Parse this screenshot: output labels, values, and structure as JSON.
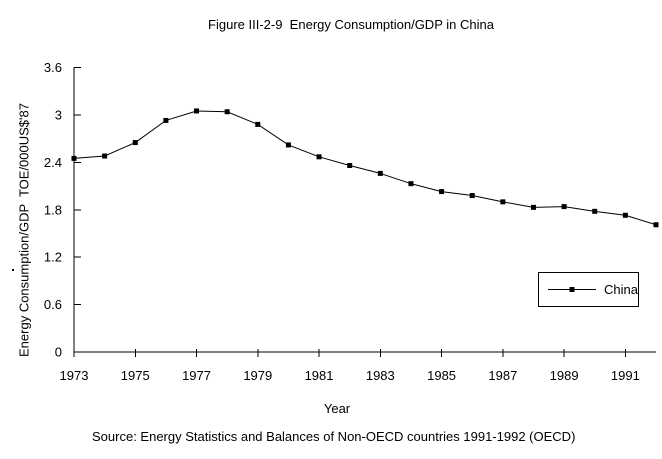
{
  "title": "Figure III-2-9  Energy Consumption/GDP in China",
  "source": "Source: Energy Statistics and Balances of Non-OECD countries 1991-1992 (OECD)",
  "axes": {
    "x_label": "Year",
    "y_label": "Energy Consumption/GDP  TOE/000US$'87"
  },
  "colors": {
    "foreground": "#000000",
    "background": "#ffffff"
  },
  "chart_data": {
    "type": "line",
    "title": "Figure III-2-9  Energy Consumption/GDP in China",
    "xlabel": "Year",
    "ylabel": "Energy Consumption/GDP  TOE/000US$'87",
    "x": [
      1973,
      1974,
      1975,
      1976,
      1977,
      1978,
      1979,
      1980,
      1981,
      1982,
      1983,
      1984,
      1985,
      1986,
      1987,
      1988,
      1989,
      1990,
      1991,
      1992
    ],
    "series": [
      {
        "name": "China",
        "color": "#000000",
        "marker": "square",
        "values": [
          2.45,
          2.48,
          2.65,
          2.93,
          3.05,
          3.04,
          2.88,
          2.62,
          2.47,
          2.36,
          2.26,
          2.13,
          2.03,
          1.98,
          1.9,
          1.83,
          1.84,
          1.78,
          1.73,
          1.61
        ]
      }
    ],
    "xlim": [
      1973,
      1992
    ],
    "ylim": [
      0,
      3.6
    ],
    "x_ticks": [
      1973,
      1975,
      1977,
      1979,
      1981,
      1983,
      1985,
      1987,
      1989,
      1991
    ],
    "y_ticks": [
      0,
      0.6,
      1.2,
      1.8,
      2.4,
      3,
      3.6
    ],
    "y_tick_labels": [
      "0",
      "0.6",
      "1.2",
      "1.8",
      "2.4",
      "3",
      "3.6"
    ],
    "grid": false,
    "legend_position": "inside-right-middle"
  }
}
